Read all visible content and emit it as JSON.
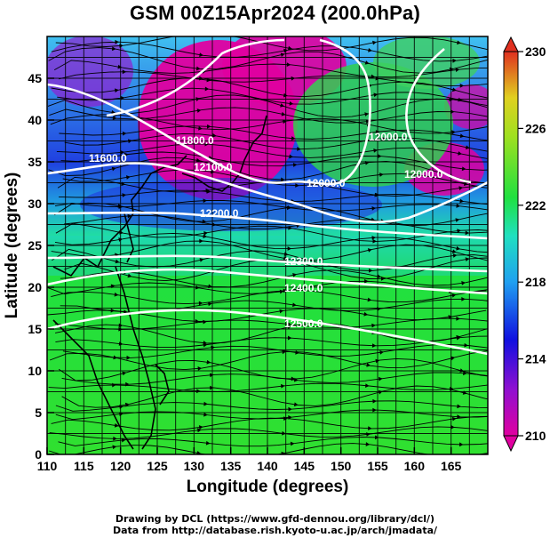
{
  "title": "GSM 00Z15Apr2024 (200.0hPa)",
  "axes": {
    "xlabel": "Longitude (degrees)",
    "ylabel": "Latitude  (degrees)",
    "xticks": [
      "110",
      "115",
      "120",
      "125",
      "130",
      "135",
      "140",
      "145",
      "150",
      "155",
      "160",
      "165"
    ],
    "yticks": [
      "0",
      "5",
      "10",
      "15",
      "20",
      "25",
      "30",
      "35",
      "40",
      "45"
    ],
    "xlim": [
      110,
      170
    ],
    "ylim": [
      0,
      50
    ]
  },
  "colorbar": {
    "ticks": [
      "210",
      "214",
      "218",
      "222",
      "226",
      "230"
    ],
    "range": [
      210,
      230
    ]
  },
  "contour_labels": [
    "11600.0",
    "11800.0",
    "12000.0",
    "12000.0",
    "12000.0",
    "12100.0",
    "12200.0",
    "12300.0",
    "12400.0",
    "12500.0"
  ],
  "credits": {
    "line1": "Drawing by DCL (https://www.gfd-dennou.org/library/dcl/)",
    "line2": "Data from http://database.rish.kyoto-u.ac.jp/arch/jmadata/"
  },
  "colors": {
    "low": "#e000a0",
    "mid_blue": "#1010e0",
    "cyan": "#20d0e0",
    "green": "#20e020",
    "yellow": "#e0e020",
    "high": "#e02020"
  }
}
